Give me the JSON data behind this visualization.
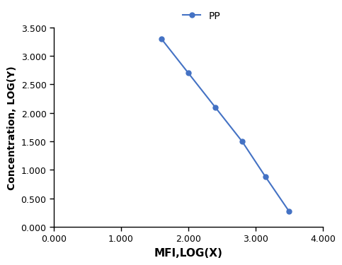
{
  "x": [
    1.6,
    2.0,
    2.4,
    2.8,
    3.15,
    3.5
  ],
  "y": [
    3.3,
    2.7,
    2.1,
    1.5,
    0.875,
    0.27
  ],
  "line_color": "#4472C4",
  "marker": "o",
  "markersize": 5,
  "linewidth": 1.5,
  "legend_label": "PP",
  "xlabel": "MFI,LOG(X)",
  "ylabel": "Concentration, LOG(Y)",
  "xlim": [
    0.0,
    4.0
  ],
  "ylim": [
    0.0,
    3.5
  ],
  "xticks": [
    0.0,
    1.0,
    2.0,
    3.0,
    4.0
  ],
  "yticks": [
    0.0,
    0.5,
    1.0,
    1.5,
    2.0,
    2.5,
    3.0,
    3.5
  ],
  "xtick_labels": [
    "0.000",
    "1.000",
    "2.000",
    "3.000",
    "4.000"
  ],
  "ytick_labels": [
    "0.000",
    "0.500",
    "1.000",
    "1.500",
    "2.000",
    "2.500",
    "3.000",
    "3.500"
  ],
  "background_color": "#ffffff",
  "grid": false,
  "xlabel_fontsize": 11,
  "ylabel_fontsize": 10,
  "tick_fontsize": 9,
  "legend_fontsize": 10
}
